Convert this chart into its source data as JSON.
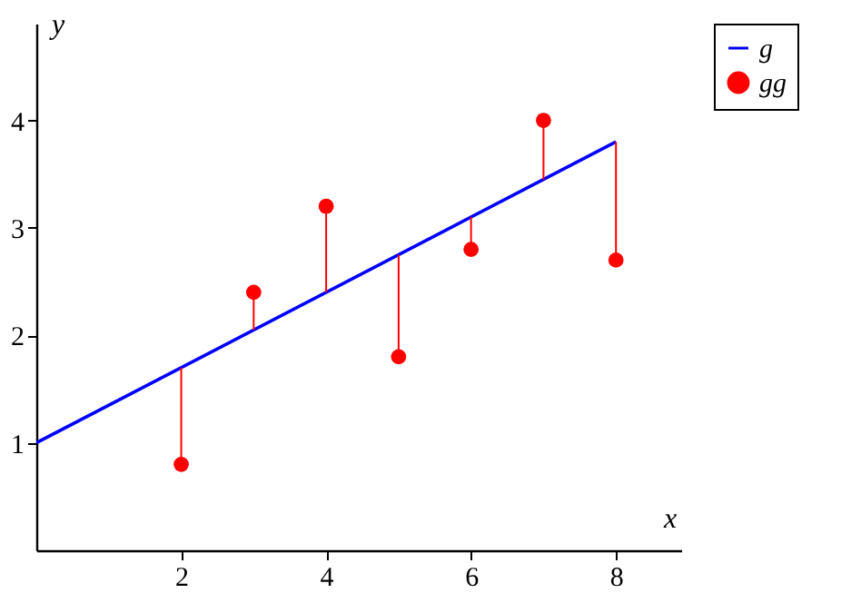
{
  "chart_data": {
    "type": "scatter",
    "xlabel": "x",
    "ylabel": "y",
    "xlim": [
      0,
      8.9
    ],
    "ylim": [
      0,
      4.9
    ],
    "xticks": [
      2,
      4,
      6,
      8
    ],
    "yticks": [
      1,
      2,
      3,
      4
    ],
    "grid": false,
    "legend": "top right",
    "series": [
      {
        "name": "g",
        "type": "line",
        "color": "#0000ff",
        "x": [
          0,
          8
        ],
        "values": [
          1,
          3.8
        ]
      },
      {
        "name": "gg",
        "color": "#ff0000",
        "x": [
          2,
          3,
          4,
          5,
          6,
          7,
          8
        ],
        "values": [
          0.8,
          2.4,
          3.2,
          1.8,
          2.8,
          4,
          2.7
        ],
        "marker": "circle",
        "errors": [
          [
            0.8,
            1.7
          ],
          [
            2.05,
            2.4
          ],
          [
            2.4,
            3.2
          ],
          [
            1.8,
            2.75
          ],
          [
            2.8,
            3.1
          ],
          [
            3.45,
            4
          ],
          [
            2.7,
            3.8
          ]
        ]
      }
    ]
  }
}
